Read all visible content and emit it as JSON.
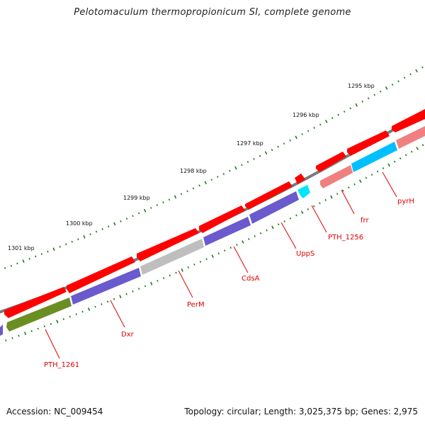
{
  "title": "Pelotomaculum thermopropionicum SI, complete genome",
  "footer": {
    "accession": "Accession: NC_009454",
    "summary": "Topology: circular; Length: 3,025,375 bp; Genes: 2,975"
  },
  "scale_labels": [
    "1295 kbp",
    "1296 kbp",
    "1297 kbp",
    "1298 kbp",
    "1299 kbp",
    "1300 kbp",
    "1301 kbp"
  ],
  "gene_labels": [
    "pyrH",
    "frr",
    "PTH_1256",
    "UppS",
    "CdsA",
    "PerM",
    "Dxr",
    "PTH_1261"
  ],
  "colors": {
    "backbone": "#808080",
    "ticks": "#1e7a1e",
    "forward_gene": "#ff0000",
    "purple_gene": "#6a5acd",
    "gray_gene": "#bebebe",
    "olive_gene": "#6b8e23",
    "cyan_gene": "#00bfff",
    "pink_gene": "#f08080",
    "label_text": "#e00000"
  }
}
